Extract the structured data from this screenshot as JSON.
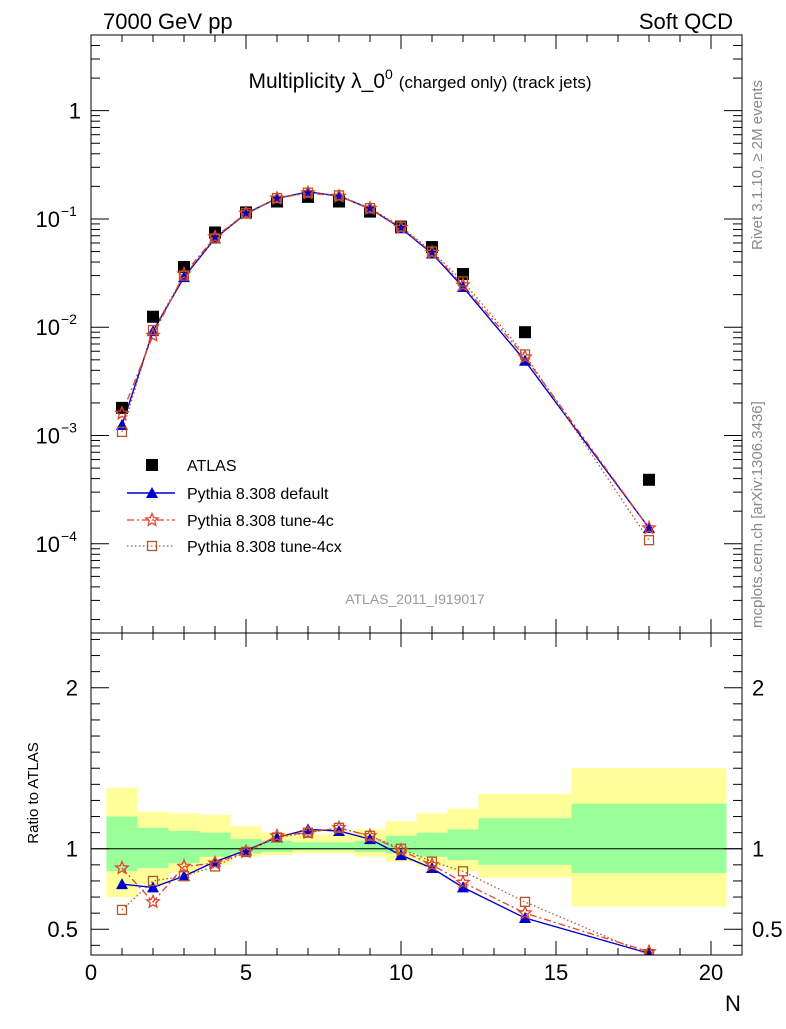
{
  "header": {
    "left": "7000 GeV pp",
    "right": "Soft QCD"
  },
  "side_labels": {
    "rivet": "Rivet 3.1.10, ≥ 2M events",
    "mcplots": "mcplots.cern.ch [arXiv:1306.3436]"
  },
  "colors": {
    "atlas": "#000000",
    "default": "#0000cc",
    "tune4c": "#e8412f",
    "tune4cx": "#b3572a",
    "band_yellow": "#ffff99",
    "band_green": "#99ff99",
    "watermark": "#999999"
  },
  "chart_data": [
    {
      "type": "line",
      "scale": "log",
      "title": "Multiplicity λ_0⁰",
      "title_main": "Multiplicity λ_0",
      "title_sup": "0",
      "title_suffix": "(charged only) (track jets)",
      "watermark": "ATLAS_2011_I919017",
      "xlim": [
        0,
        21
      ],
      "ylim": [
        1.5e-05,
        5
      ],
      "y_ticks": [
        {
          "value": 1,
          "label": "1"
        },
        {
          "value": 0.1,
          "base": "10",
          "exp": "−1"
        },
        {
          "value": 0.01,
          "base": "10",
          "exp": "−2"
        },
        {
          "value": 0.001,
          "base": "10",
          "exp": "−3"
        },
        {
          "value": 0.0001,
          "base": "10",
          "exp": "−4"
        }
      ],
      "legend_position": "lower-left",
      "series": [
        {
          "name": "ATLAS",
          "key": "atlas",
          "x": [
            1,
            2,
            3,
            4,
            5,
            6,
            7,
            8,
            9,
            10,
            11,
            12,
            14,
            18
          ],
          "values": [
            0.0018,
            0.0125,
            0.036,
            0.075,
            0.115,
            0.145,
            0.16,
            0.145,
            0.117,
            0.085,
            0.055,
            0.031,
            0.009,
            0.00039
          ]
        },
        {
          "name": "Pythia 8.308 default",
          "key": "default",
          "x": [
            1,
            2,
            3,
            4,
            5,
            6,
            7,
            8,
            9,
            10,
            11,
            12,
            14,
            18
          ],
          "values": [
            0.00125,
            0.0092,
            0.029,
            0.066,
            0.112,
            0.155,
            0.178,
            0.163,
            0.124,
            0.082,
            0.048,
            0.0235,
            0.0049,
            0.00014
          ]
        },
        {
          "name": "Pythia 8.308 tune-4c",
          "key": "tune4c",
          "x": [
            1,
            2,
            3,
            4,
            5,
            6,
            7,
            8,
            9,
            10,
            11,
            12,
            14,
            18
          ],
          "values": [
            0.0016,
            0.0084,
            0.031,
            0.068,
            0.113,
            0.155,
            0.174,
            0.162,
            0.125,
            0.083,
            0.049,
            0.0245,
            0.0053,
            0.00014
          ]
        },
        {
          "name": "Pythia 8.308 tune-4cx",
          "key": "tune4cx",
          "x": [
            1,
            2,
            3,
            4,
            5,
            6,
            7,
            8,
            9,
            10,
            11,
            12,
            14,
            18
          ],
          "values": [
            0.00108,
            0.0094,
            0.03,
            0.066,
            0.113,
            0.156,
            0.175,
            0.165,
            0.126,
            0.085,
            0.05,
            0.0265,
            0.0056,
            0.000108
          ]
        }
      ]
    },
    {
      "type": "line",
      "ylabel": "Ratio to ATLAS",
      "xlabel": "N",
      "xlim": [
        0,
        21
      ],
      "ylim": [
        0.34,
        2.34
      ],
      "x_ticks": [
        0,
        5,
        10,
        15,
        20
      ],
      "y_ticks": [
        0.5,
        1,
        2
      ],
      "reference_line": 1,
      "bands": [
        {
          "x0": 0.5,
          "x1": 1.5,
          "yellow": [
            0.7,
            1.38
          ],
          "green": [
            0.86,
            1.2
          ]
        },
        {
          "x0": 1.5,
          "x1": 2.5,
          "yellow": [
            0.78,
            1.23
          ],
          "green": [
            0.88,
            1.13
          ]
        },
        {
          "x0": 2.5,
          "x1": 3.5,
          "yellow": [
            0.85,
            1.22
          ],
          "green": [
            0.91,
            1.11
          ]
        },
        {
          "x0": 3.5,
          "x1": 4.5,
          "yellow": [
            0.9,
            1.21
          ],
          "green": [
            0.95,
            1.1
          ]
        },
        {
          "x0": 4.5,
          "x1": 5.5,
          "yellow": [
            0.95,
            1.14
          ],
          "green": [
            0.97,
            1.06
          ]
        },
        {
          "x0": 5.5,
          "x1": 6.5,
          "yellow": [
            0.96,
            1.1
          ],
          "green": [
            0.98,
            1.05
          ]
        },
        {
          "x0": 6.5,
          "x1": 7.5,
          "yellow": [
            0.97,
            1.09
          ],
          "green": [
            0.99,
            1.04
          ]
        },
        {
          "x0": 7.5,
          "x1": 8.5,
          "yellow": [
            0.97,
            1.09
          ],
          "green": [
            0.99,
            1.04
          ]
        },
        {
          "x0": 8.5,
          "x1": 9.5,
          "yellow": [
            0.95,
            1.12
          ],
          "green": [
            0.98,
            1.05
          ]
        },
        {
          "x0": 9.5,
          "x1": 10.5,
          "yellow": [
            0.92,
            1.17
          ],
          "green": [
            0.97,
            1.08
          ]
        },
        {
          "x0": 10.5,
          "x1": 11.5,
          "yellow": [
            0.89,
            1.22
          ],
          "green": [
            0.95,
            1.1
          ]
        },
        {
          "x0": 11.5,
          "x1": 12.5,
          "yellow": [
            0.86,
            1.25
          ],
          "green": [
            0.93,
            1.12
          ]
        },
        {
          "x0": 12.5,
          "x1": 15.5,
          "yellow": [
            0.82,
            1.34
          ],
          "green": [
            0.9,
            1.19
          ]
        },
        {
          "x0": 15.5,
          "x1": 20.5,
          "yellow": [
            0.64,
            1.5
          ],
          "green": [
            0.85,
            1.28
          ]
        }
      ],
      "series": [
        {
          "name": "Pythia 8.308 default",
          "key": "default",
          "x": [
            1,
            2,
            3,
            4,
            5,
            6,
            7,
            8,
            9,
            10,
            11,
            12,
            14,
            18
          ],
          "values": [
            0.78,
            0.76,
            0.83,
            0.92,
            0.99,
            1.07,
            1.12,
            1.11,
            1.06,
            0.96,
            0.88,
            0.76,
            0.57,
            0.35
          ]
        },
        {
          "name": "Pythia 8.308 tune-4c",
          "key": "tune4c",
          "x": [
            1,
            2,
            3,
            4,
            5,
            6,
            7,
            8,
            9,
            10,
            11,
            12,
            14,
            18
          ],
          "values": [
            0.88,
            0.67,
            0.89,
            0.91,
            0.98,
            1.08,
            1.1,
            1.13,
            1.08,
            0.99,
            0.9,
            0.79,
            0.6,
            0.36
          ]
        },
        {
          "name": "Pythia 8.308 tune-4cx",
          "key": "tune4cx",
          "x": [
            1,
            2,
            3,
            4,
            5,
            6,
            7,
            8,
            9,
            10,
            11,
            12,
            14,
            18
          ],
          "values": [
            0.62,
            0.8,
            0.83,
            0.89,
            0.98,
            1.07,
            1.1,
            1.13,
            1.08,
            1.0,
            0.92,
            0.86,
            0.67,
            0.34
          ]
        }
      ]
    }
  ]
}
